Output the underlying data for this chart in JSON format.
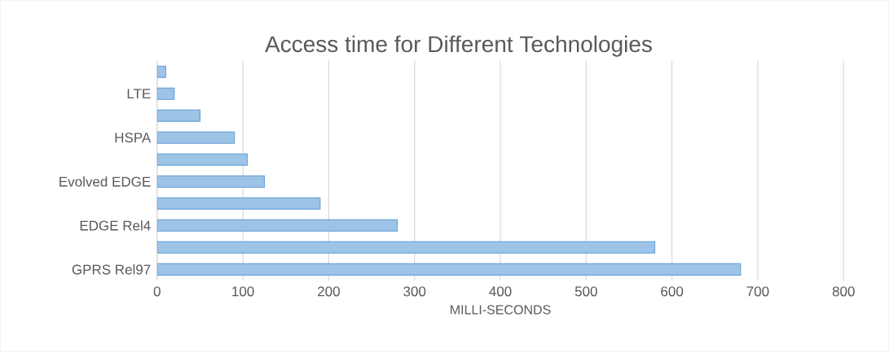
{
  "chart_data": {
    "type": "bar",
    "orientation": "horizontal",
    "title": "Access time for Different Technologies",
    "xlabel": "MILLI-SECONDS",
    "categories": [
      null,
      "LTE",
      null,
      "HSPA",
      null,
      "Evolved EDGE",
      null,
      "EDGE Rel4",
      null,
      "GPRS Rel97"
    ],
    "values": [
      10,
      20,
      50,
      90,
      105,
      125,
      190,
      280,
      580,
      680
    ],
    "color": "#9dc3e6",
    "xlim": [
      0,
      800
    ],
    "xticks": [
      0,
      100,
      200,
      300,
      400,
      500,
      600,
      700,
      800
    ],
    "grid": "x"
  }
}
